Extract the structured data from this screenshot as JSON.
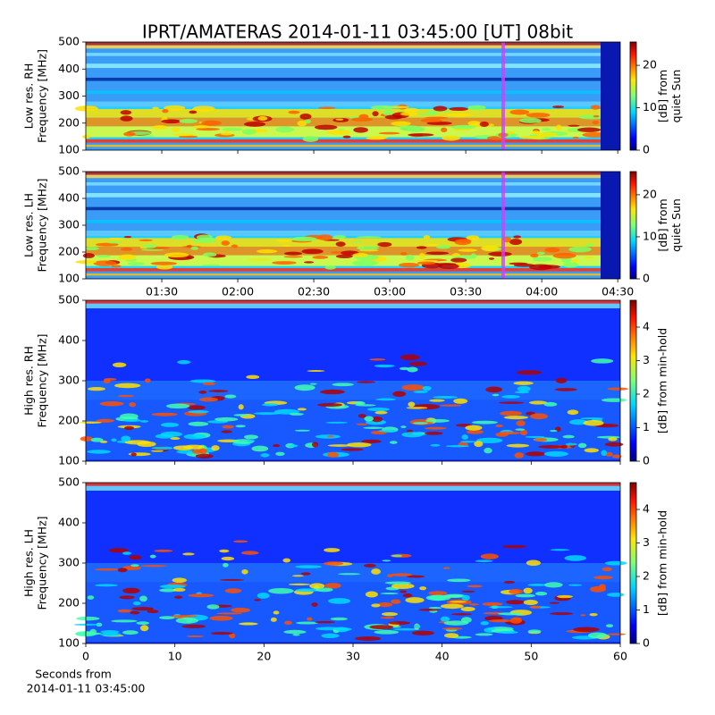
{
  "chart_data": [
    {
      "type": "heatmap",
      "title": "IPRT/AMATERAS 2014-01-11 03:45:00 [UT]   08bit",
      "ylabel": [
        "Low res. RH",
        "Frequency [MHz]"
      ],
      "ylim": [
        100,
        500
      ],
      "yticks": [
        100,
        200,
        300,
        400,
        500
      ],
      "xlim": [
        "01:00",
        "04:31"
      ],
      "xticks": [
        "01:30",
        "02:00",
        "02:30",
        "03:00",
        "03:30",
        "04:00",
        "04:30"
      ],
      "xtick_labels": false,
      "colorbar": {
        "label": [
          "[dB] from",
          "quiet Sun"
        ],
        "lim": [
          0,
          25.5
        ],
        "ticks": [
          0,
          10,
          20
        ]
      }
    },
    {
      "type": "heatmap",
      "ylabel": [
        "Low res. LH",
        "Frequency [MHz]"
      ],
      "ylim": [
        100,
        500
      ],
      "yticks": [
        100,
        200,
        300,
        400,
        500
      ],
      "xlim": [
        "01:00",
        "04:31"
      ],
      "xticks": [
        "01:30",
        "02:00",
        "02:30",
        "03:00",
        "03:30",
        "04:00",
        "04:30"
      ],
      "xtick_labels": true,
      "colorbar": {
        "label": [
          "[dB] from",
          "quiet Sun"
        ],
        "lim": [
          0,
          25.5
        ],
        "ticks": [
          0,
          10,
          20
        ]
      }
    },
    {
      "type": "heatmap",
      "ylabel": [
        "High res. RH",
        "Frequency [MHz]"
      ],
      "ylim": [
        100,
        500
      ],
      "yticks": [
        100,
        200,
        300,
        400,
        500
      ],
      "xlim": [
        0,
        60
      ],
      "xticks": [
        0,
        10,
        20,
        30,
        40,
        50,
        60
      ],
      "xtick_labels": false,
      "colorbar": {
        "label": [
          "[dB] from min-hold"
        ],
        "lim": [
          0,
          4.8
        ],
        "ticks": [
          0,
          1,
          2,
          3,
          4
        ]
      }
    },
    {
      "type": "heatmap",
      "ylabel": [
        "High res. LH",
        "Frequency [MHz]"
      ],
      "ylim": [
        100,
        500
      ],
      "yticks": [
        100,
        200,
        300,
        400,
        500
      ],
      "xlim": [
        0,
        60
      ],
      "xticks": [
        0,
        10,
        20,
        30,
        40,
        50,
        60
      ],
      "xtick_labels": true,
      "xlabel": [
        "Seconds from",
        "2014-01-11 03:45:00"
      ],
      "colorbar": {
        "label": [
          "[dB] from min-hold"
        ],
        "lim": [
          0,
          4.8
        ],
        "ticks": [
          0,
          1,
          2,
          3,
          4
        ]
      }
    }
  ]
}
